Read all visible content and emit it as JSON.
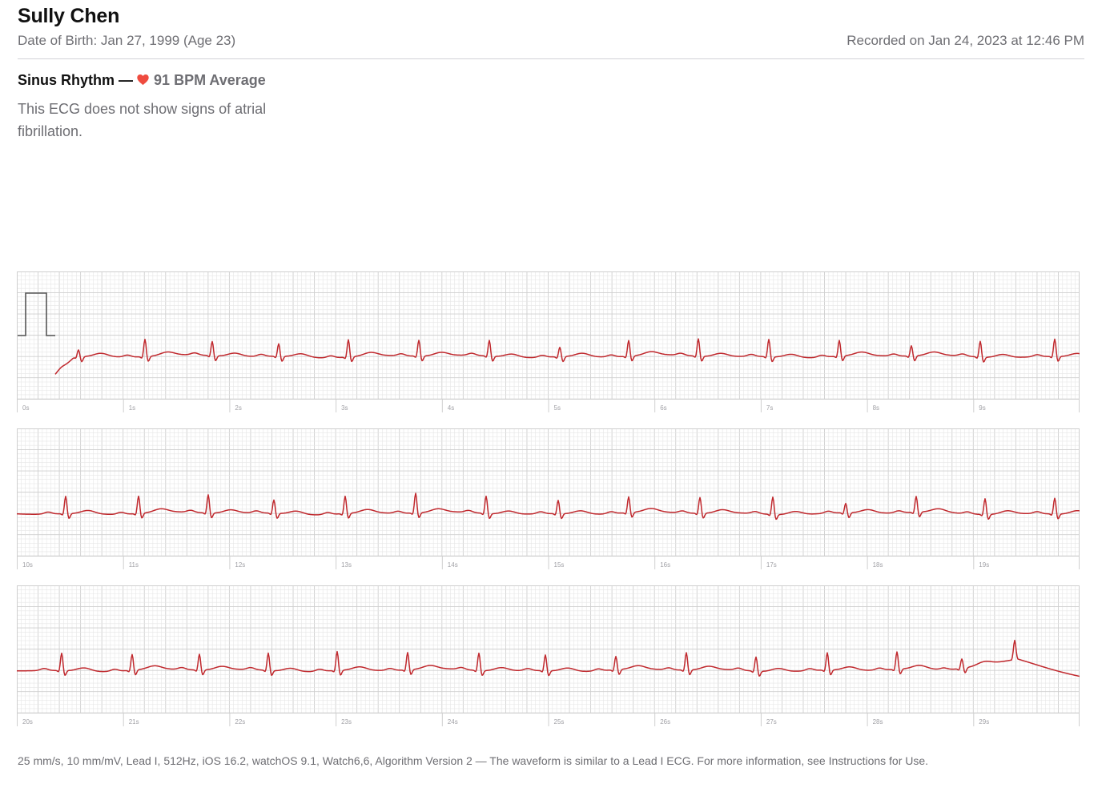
{
  "patient": {
    "name": "Sully Chen",
    "dob": "Date of Birth: Jan 27, 1999 (Age 23)"
  },
  "recorded": "Recorded on Jan 24, 2023 at 12:46 PM",
  "result": {
    "classification": "Sinus Rhythm —",
    "bpm": "91 BPM Average",
    "description": "This ECG does not show signs of atrial fibrillation."
  },
  "colors": {
    "waveform": "#c0282d",
    "heart": "#ef4b3f",
    "grid_minor": "#e6e6e6",
    "grid_major": "#cfcfcf",
    "calibration": "#555555"
  },
  "strips": [
    {
      "seconds": [
        "0s",
        "1s",
        "2s",
        "3s",
        "4s",
        "5s",
        "6s",
        "7s",
        "8s",
        "9s"
      ]
    },
    {
      "seconds": [
        "10s",
        "11s",
        "12s",
        "13s",
        "14s",
        "15s",
        "16s",
        "17s",
        "18s",
        "19s"
      ]
    },
    {
      "seconds": [
        "20s",
        "21s",
        "22s",
        "23s",
        "24s",
        "25s",
        "26s",
        "27s",
        "28s",
        "29s"
      ]
    }
  ],
  "footer": "25 mm/s, 10 mm/mV, Lead I, 512Hz, iOS 16.2, watchOS 9.1, Watch6,6, Algorithm Version 2 — The waveform is similar to a Lead I ECG. For more information, see Instructions for Use."
}
